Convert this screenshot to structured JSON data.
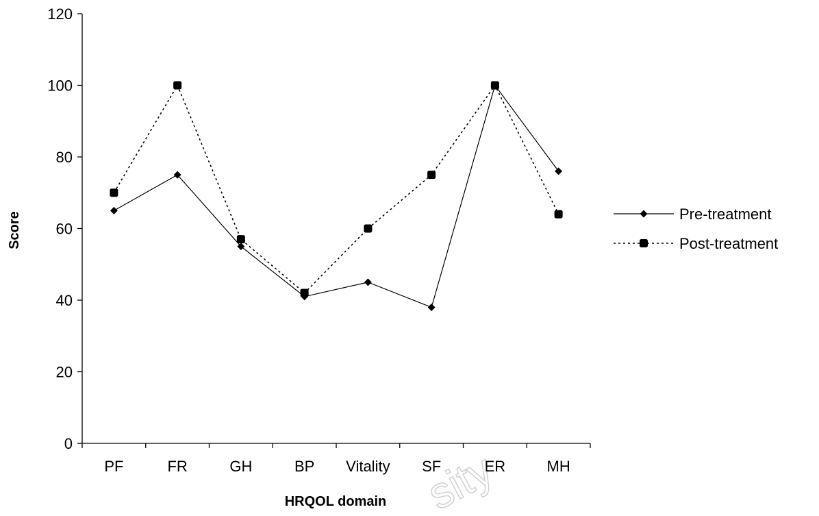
{
  "watermark": "sity",
  "chart_data": {
    "type": "line",
    "title": "",
    "xlabel": "HRQOL domain",
    "ylabel": "Score",
    "categories": [
      "PF",
      "FR",
      "GH",
      "BP",
      "Vitality",
      "SF",
      "ER",
      "MH"
    ],
    "ylim": [
      0,
      120
    ],
    "yticks": [
      0,
      20,
      40,
      60,
      80,
      100,
      120
    ],
    "grid": false,
    "legend_position": "right",
    "series": [
      {
        "name": "Pre-treatment",
        "values": [
          65,
          75,
          55,
          41,
          45,
          38,
          100,
          76
        ],
        "line_style": "solid",
        "marker": "diamond",
        "color": "#000000"
      },
      {
        "name": "Post-treatment",
        "values": [
          70,
          100,
          57,
          42,
          60,
          75,
          100,
          64
        ],
        "line_style": "dotted",
        "marker": "square",
        "color": "#000000"
      }
    ]
  }
}
